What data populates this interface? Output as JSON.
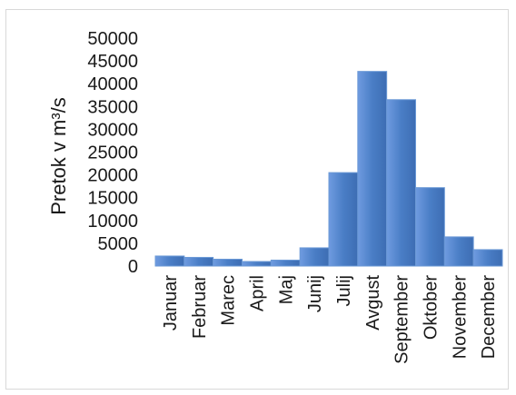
{
  "chart_data": {
    "type": "bar",
    "categories": [
      "Januar",
      "Februar",
      "Marec",
      "April",
      "Maj",
      "Junij",
      "Julij",
      "Avgust",
      "September",
      "Oktober",
      "November",
      "December"
    ],
    "values": [
      2200,
      1900,
      1500,
      1000,
      1300,
      4000,
      20500,
      42700,
      36500,
      17200,
      6400,
      3600
    ],
    "yticks": [
      0,
      5000,
      10000,
      15000,
      20000,
      25000,
      30000,
      35000,
      40000,
      45000,
      50000
    ],
    "ylim": [
      0,
      50000
    ],
    "ylabel": "Pretok v m³/s",
    "xlabel": "",
    "title": "",
    "grid": false,
    "legend": "none",
    "bar_color": "#4a7ec6",
    "bar_edge_color": "#6b99d6"
  }
}
